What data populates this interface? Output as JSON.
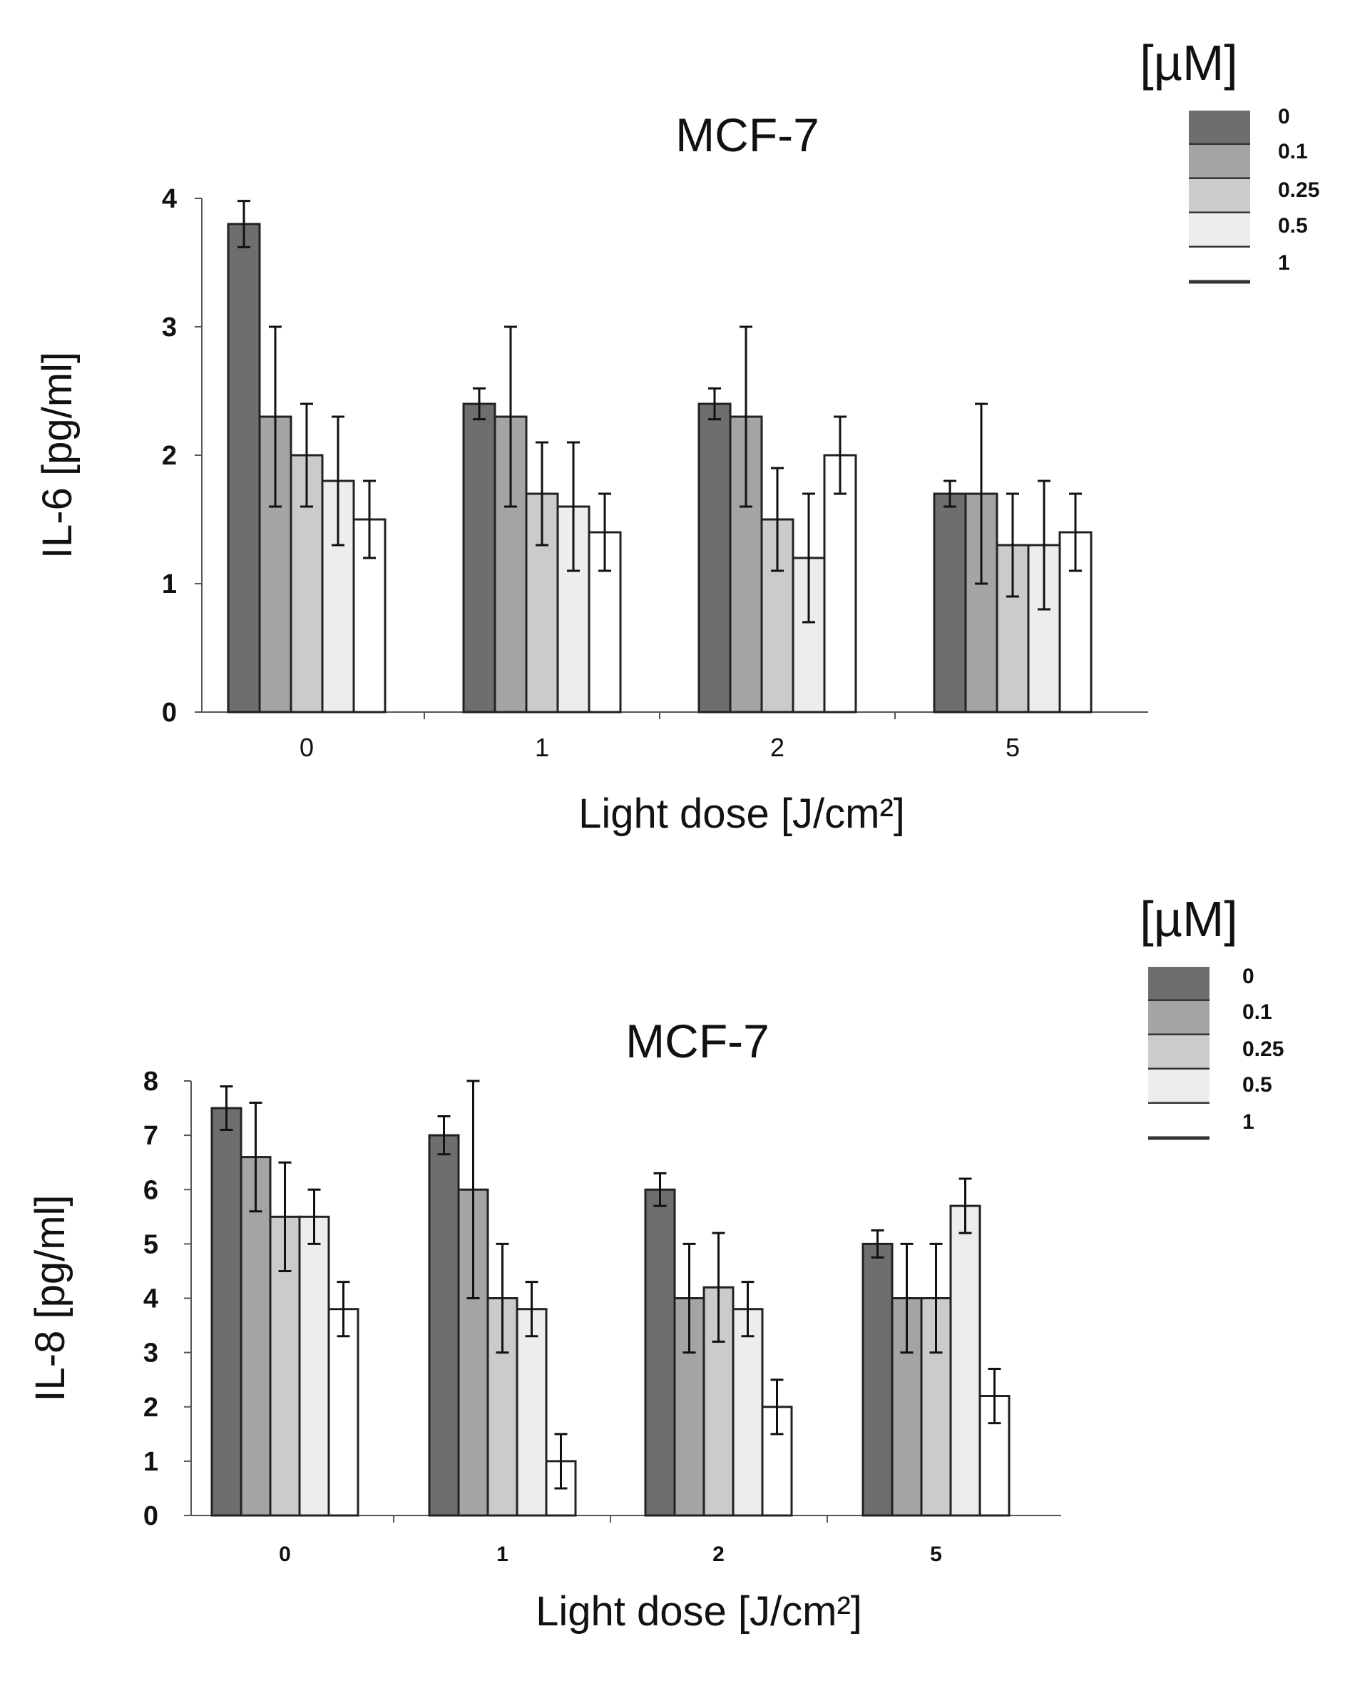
{
  "chart_data": [
    {
      "type": "bar",
      "title": "MCF-7",
      "xlabel": "Light dose  [J/cm²]",
      "ylabel": "IL-6 [pg/ml]",
      "ylim": [
        0,
        4
      ],
      "yticks": [
        "0",
        "1",
        "2",
        "3",
        "4"
      ],
      "categories": [
        "0",
        "1",
        "2",
        "5"
      ],
      "legend_title": "[µM]",
      "legend_position": "top-right",
      "grid": false,
      "colors": [
        "#6e6e6e",
        "#a4a4a4",
        "#cbcbcb",
        "#ededed",
        "#ffffff"
      ],
      "series": [
        {
          "name": "0",
          "values": [
            3.8,
            2.4,
            2.4,
            1.7
          ],
          "errors": [
            0.18,
            0.12,
            0.12,
            0.1
          ]
        },
        {
          "name": "0.1",
          "values": [
            2.3,
            2.3,
            2.3,
            1.7
          ],
          "errors": [
            0.7,
            0.7,
            0.7,
            0.7
          ]
        },
        {
          "name": "0.25",
          "values": [
            2.0,
            1.7,
            1.5,
            1.3
          ],
          "errors": [
            0.4,
            0.4,
            0.4,
            0.4
          ]
        },
        {
          "name": "0.5",
          "values": [
            1.8,
            1.6,
            1.2,
            1.3
          ],
          "errors": [
            0.5,
            0.5,
            0.5,
            0.5
          ]
        },
        {
          "name": "1",
          "values": [
            1.5,
            1.4,
            2.0,
            1.4
          ],
          "errors": [
            0.3,
            0.3,
            0.3,
            0.3
          ]
        }
      ]
    },
    {
      "type": "bar",
      "title": "MCF-7",
      "xlabel": "Light dose  [J/cm²]",
      "ylabel": "IL-8 [pg/ml]",
      "ylim": [
        0,
        8
      ],
      "yticks": [
        "0",
        "1",
        "2",
        "3",
        "4",
        "5",
        "6",
        "7",
        "8"
      ],
      "categories": [
        "0",
        "1",
        "2",
        "5"
      ],
      "legend_title": "[µM]",
      "legend_position": "top-right",
      "grid": false,
      "colors": [
        "#6e6e6e",
        "#a4a4a4",
        "#cbcbcb",
        "#ededed",
        "#ffffff"
      ],
      "series": [
        {
          "name": "0",
          "values": [
            7.5,
            7.0,
            6.0,
            5.0
          ],
          "errors": [
            0.4,
            0.35,
            0.3,
            0.25
          ]
        },
        {
          "name": "0.1",
          "values": [
            6.6,
            6.0,
            4.0,
            4.0
          ],
          "errors": [
            1.0,
            2.0,
            1.0,
            1.0
          ]
        },
        {
          "name": "0.25",
          "values": [
            5.5,
            4.0,
            4.2,
            4.0
          ],
          "errors": [
            1.0,
            1.0,
            1.0,
            1.0
          ]
        },
        {
          "name": "0.5",
          "values": [
            5.5,
            3.8,
            3.8,
            5.7
          ],
          "errors": [
            0.5,
            0.5,
            0.5,
            0.5
          ]
        },
        {
          "name": "1",
          "values": [
            3.8,
            1.0,
            2.0,
            2.2
          ],
          "errors": [
            0.5,
            0.5,
            0.5,
            0.5
          ]
        }
      ]
    }
  ]
}
